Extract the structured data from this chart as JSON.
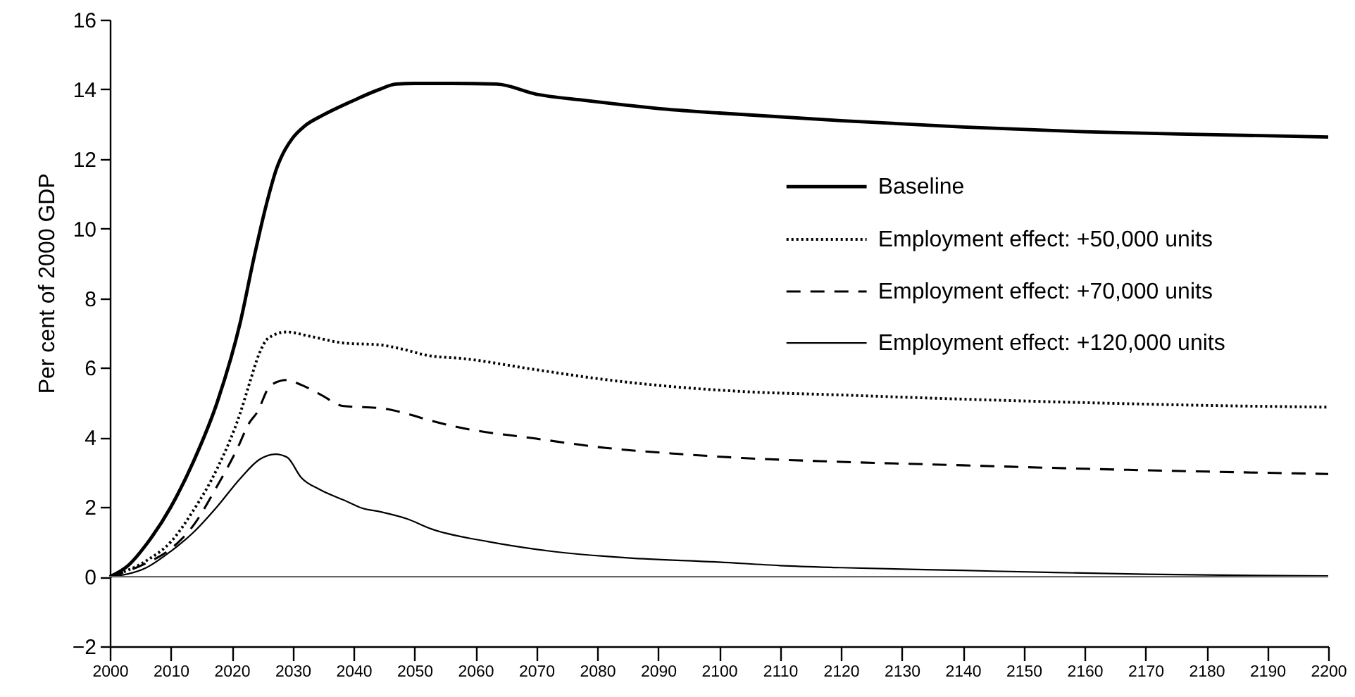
{
  "chart_data": {
    "type": "line",
    "ylabel": "Per cent of 2000 GDP",
    "xlim": [
      2000,
      2200
    ],
    "xticks": [
      2000,
      2010,
      2020,
      2030,
      2040,
      2050,
      2060,
      2070,
      2080,
      2090,
      2100,
      2110,
      2120,
      2130,
      2140,
      2150,
      2160,
      2170,
      2180,
      2190,
      2200
    ],
    "ylim": [
      -2,
      16
    ],
    "yticks": [
      {
        "value": -2,
        "label": "−2"
      },
      0,
      2,
      4,
      6,
      8,
      10,
      12,
      14,
      16
    ],
    "legend": "right",
    "ref_lines": [
      {
        "axis": "y",
        "value": 0,
        "color": "#666666"
      }
    ],
    "series": [
      {
        "name": "Baseline",
        "color": "#000000",
        "line_style": "solid",
        "x": [
          2000,
          2003,
          2006,
          2010,
          2013.7,
          2017.6,
          2021.4,
          2023.7,
          2025.7,
          2027.4,
          2028,
          2030,
          2032,
          2035,
          2039.5,
          2044,
          2047,
          2050,
          2056,
          2063.5,
          2070,
          2078,
          2085,
          2090,
          2100,
          2120,
          2140,
          2160,
          2180,
          2200
        ],
        "values": [
          0,
          0.32,
          0.93,
          2.0,
          3.3,
          5.0,
          7.3,
          9.2,
          10.7,
          11.74,
          12.0,
          12.6,
          12.95,
          13.26,
          13.64,
          13.98,
          14.15,
          14.17,
          14.17,
          14.15,
          13.86,
          13.68,
          13.54,
          13.45,
          13.32,
          13.1,
          12.92,
          12.78,
          12.7,
          12.63
        ]
      },
      {
        "name": "Employment effect: +50,000 units",
        "color": "#000000",
        "line_style": "dotted",
        "x": [
          2000,
          2006,
          2010,
          2013.7,
          2017.6,
          2021.4,
          2023,
          2024.5,
          2026,
          2029,
          2033,
          2038.5,
          2044.3,
          2048.2,
          2052,
          2058.3,
          2069.8,
          2081.4,
          2093,
          2103.8,
          2120,
          2140,
          2160,
          2180,
          2200
        ],
        "values": [
          0,
          0.46,
          1.0,
          1.9,
          3.1,
          4.7,
          5.6,
          6.4,
          6.85,
          7.03,
          6.9,
          6.71,
          6.66,
          6.53,
          6.36,
          6.26,
          5.95,
          5.66,
          5.45,
          5.32,
          5.22,
          5.1,
          5.0,
          4.92,
          4.87
        ]
      },
      {
        "name": "Employment effect: +70,000 units",
        "color": "#000000",
        "line_style": "dashed",
        "x": [
          2000,
          2006,
          2010,
          2013.7,
          2017.6,
          2020.7,
          2023,
          2024.1,
          2026.4,
          2029,
          2031.4,
          2034.5,
          2038.4,
          2044.5,
          2048.8,
          2052.1,
          2056.7,
          2069.8,
          2081.4,
          2093,
          2103.8,
          2120,
          2140,
          2160,
          2180,
          2200
        ],
        "values": [
          0,
          0.39,
          0.8,
          1.47,
          2.6,
          3.6,
          4.45,
          4.7,
          5.5,
          5.65,
          5.51,
          5.24,
          4.9,
          4.84,
          4.68,
          4.51,
          4.31,
          3.97,
          3.7,
          3.53,
          3.41,
          3.3,
          3.2,
          3.1,
          3.02,
          2.95
        ]
      },
      {
        "name": "Employment effect: +120,000 units",
        "color": "#000000",
        "line_style": "solid",
        "x": [
          2000,
          2006,
          2010,
          2013.7,
          2017.6,
          2021.4,
          2024.5,
          2027.2,
          2029.1,
          2031.4,
          2034.5,
          2038.4,
          2041.4,
          2044.5,
          2048.8,
          2052.8,
          2062,
          2072,
          2085,
          2100,
          2110,
          2120,
          2140,
          2155,
          2170,
          2185,
          2200
        ],
        "values": [
          0,
          0.26,
          0.73,
          1.27,
          2.01,
          2.82,
          3.36,
          3.52,
          3.43,
          2.85,
          2.5,
          2.2,
          1.97,
          1.86,
          1.66,
          1.37,
          1.01,
          0.74,
          0.54,
          0.42,
          0.32,
          0.26,
          0.18,
          0.12,
          0.07,
          0.04,
          0.02
        ]
      }
    ]
  }
}
